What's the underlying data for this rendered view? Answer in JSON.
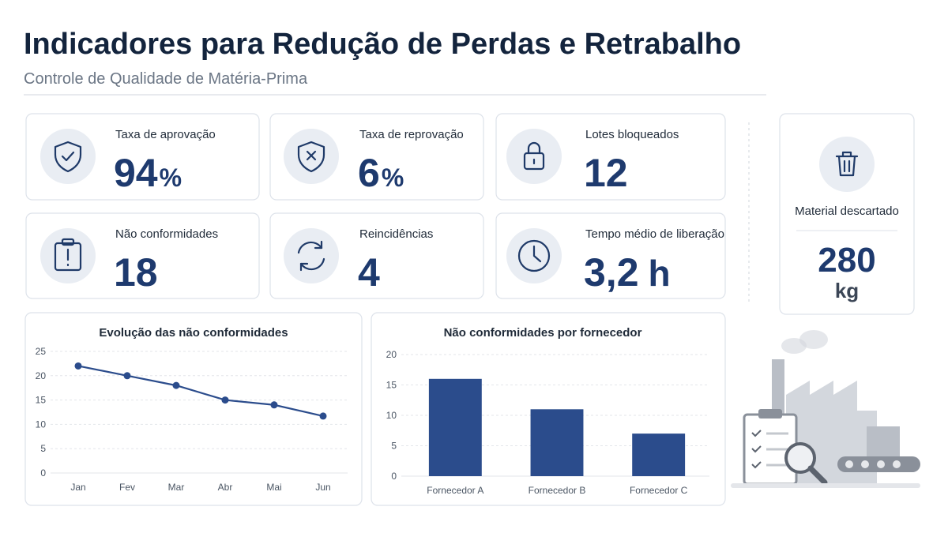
{
  "header": {
    "title": "Indicadores para Redução de Perdas e Retrabalho",
    "subtitle": "Controle de Qualidade de Matéria-Prima"
  },
  "kpis": [
    {
      "label": "Taxa de aprovação",
      "value": 94,
      "unit": "%"
    },
    {
      "label": "Taxa de reprovação",
      "value": 6,
      "unit": "%"
    },
    {
      "label": "Lotes bloqueados",
      "value": 12
    },
    {
      "label": "Não conformidades",
      "value": 18
    },
    {
      "label": "Reincidências",
      "value": 4
    },
    {
      "label": "Tempo médio de liberação",
      "value": 3.2,
      "value_label": "3,2",
      "unit": "h"
    }
  ],
  "side_kpi": {
    "label": "Material descartado",
    "value": 280,
    "unit": "kg"
  },
  "chart_data": [
    {
      "type": "line",
      "title": "Evolução das não conformidades",
      "categories": [
        "Jan",
        "Fev",
        "Mar",
        "Abr",
        "Mai",
        "Jun"
      ],
      "values": [
        22,
        20,
        18,
        15,
        14,
        11.7
      ],
      "color": "#2b4c8c",
      "ylim": [
        0,
        25
      ],
      "yticks": [
        0,
        5,
        10,
        15,
        20,
        25
      ],
      "grid": true
    },
    {
      "type": "bar",
      "title": "Não conformidades por fornecedor",
      "categories": [
        "Fornecedor A",
        "Fornecedor B",
        "Fornecedor C"
      ],
      "values": [
        16,
        11,
        7
      ],
      "color": "#2b4c8c",
      "ylim": [
        0,
        20
      ],
      "yticks": [
        0,
        5,
        10,
        15,
        20
      ],
      "grid": true
    }
  ]
}
